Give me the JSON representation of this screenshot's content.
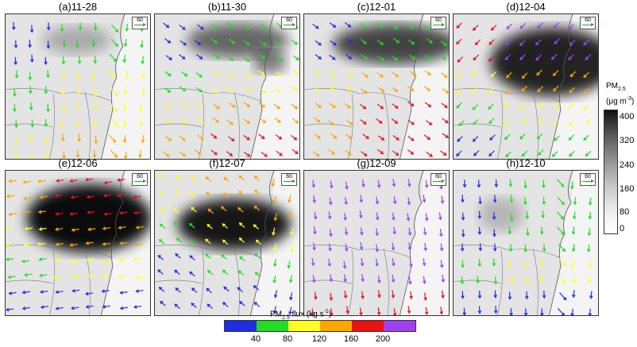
{
  "panels": [
    {
      "id": "a",
      "title": "(a)11-28",
      "ref": "60"
    },
    {
      "id": "b",
      "title": "(b)11-30",
      "ref": "60"
    },
    {
      "id": "c",
      "title": "(c)12-01",
      "ref": "60"
    },
    {
      "id": "d",
      "title": "(d)12-04",
      "ref": "60"
    },
    {
      "id": "e",
      "title": "(e)12-06",
      "ref": "60"
    },
    {
      "id": "f",
      "title": "(f)12-07",
      "ref": "60"
    },
    {
      "id": "g",
      "title": "(g)12-09",
      "ref": "60"
    },
    {
      "id": "h",
      "title": "(h)12-10",
      "ref": "60"
    }
  ],
  "pm_colorbar": {
    "title_line1": "PM",
    "title_sub": "2.5",
    "title_line2": "(μg m",
    "title_sup": "-3",
    "title_end": ")",
    "labels": [
      "400",
      "320",
      "240",
      "160",
      "80",
      "0"
    ],
    "shades": [
      "#111111",
      "#3a3a3a",
      "#5e5e5e",
      "#7e7e7e",
      "#9c9c9c",
      "#b9b9b9",
      "#d2d2d2",
      "#e6e6e6",
      "#f5f5f5",
      "#ffffff"
    ]
  },
  "flux_colorbar": {
    "title": "PM2.5 flux (kg s-1)",
    "labels": [
      "40",
      "80",
      "120",
      "160",
      "200"
    ],
    "colors": [
      "#1f2de6",
      "#22dd22",
      "#ffff22",
      "#ffa500",
      "#ee1111",
      "#a040f0"
    ]
  }
}
